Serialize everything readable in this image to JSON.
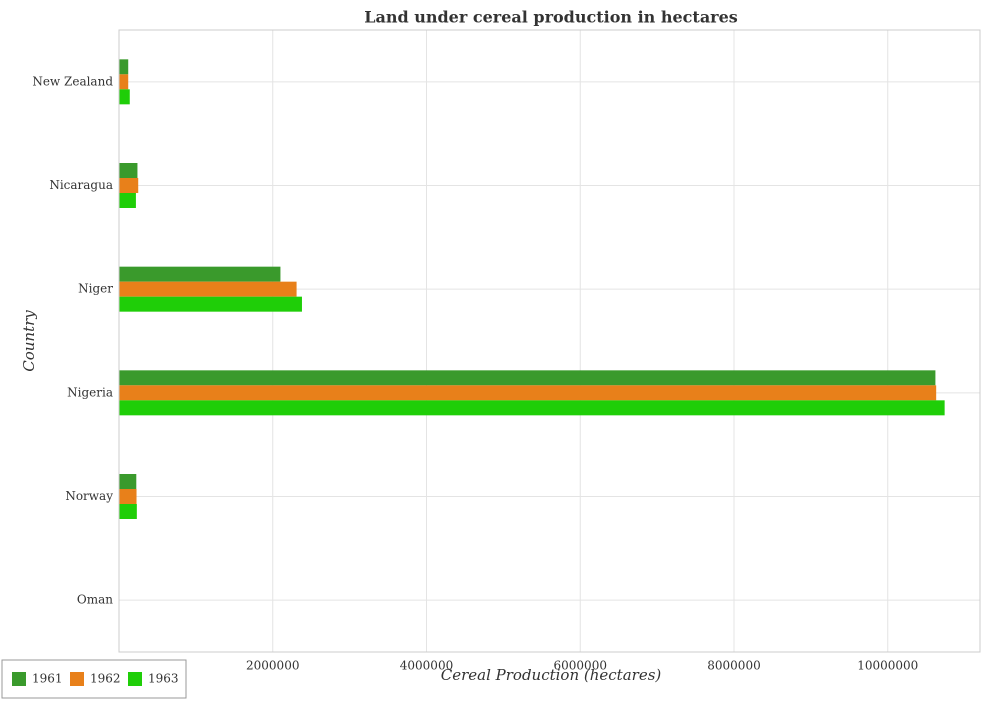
{
  "chart_data": {
    "type": "hbar",
    "title": "Land under cereal production in hectares",
    "xlabel": "Cereal Production (hectares)",
    "ylabel": "Country",
    "categories": [
      "New Zealand",
      "Nicaragua",
      "Niger",
      "Nigeria",
      "Norway",
      "Oman"
    ],
    "series": [
      {
        "name": "1961",
        "color": "#3a9a2c",
        "values": [
          120000,
          240000,
          2100000,
          10620000,
          225000,
          2000
        ]
      },
      {
        "name": "1962",
        "color": "#e8801a",
        "values": [
          120000,
          250000,
          2310000,
          10630000,
          228000,
          2100
        ]
      },
      {
        "name": "1963",
        "color": "#1fce08",
        "values": [
          140000,
          220000,
          2380000,
          10740000,
          232000,
          2200
        ]
      }
    ],
    "xlim": [
      0,
      11200000
    ],
    "xticks": [
      0,
      2000000,
      4000000,
      6000000,
      8000000,
      10000000
    ],
    "grid": true,
    "legend": "bottom-left"
  }
}
